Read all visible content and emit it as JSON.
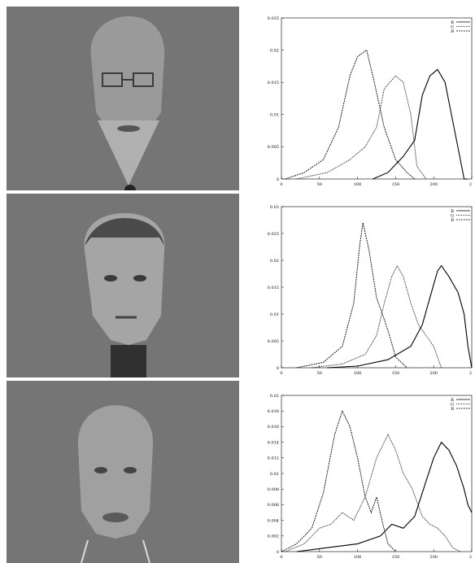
{
  "colors": {
    "photo_background": "#757575",
    "axis": "#000000",
    "curve": "#000000"
  },
  "panels": [
    {
      "photo_name": "face-photo-1"
    },
    {
      "photo_name": "face-photo-2"
    },
    {
      "photo_name": "face-photo-3"
    }
  ],
  "chart_data": [
    {
      "type": "line",
      "xlim": [
        0,
        250
      ],
      "ylim": [
        0,
        0.025
      ],
      "xticks": [
        "0",
        "50",
        "100",
        "150",
        "200",
        "2"
      ],
      "yticks": [
        "0",
        "0.005",
        "0.01",
        "0.015",
        "0.02",
        "0.025"
      ],
      "legend_position": "top-right",
      "series": [
        {
          "name": "R",
          "style": "solid",
          "points": [
            [
              120,
              0
            ],
            [
              140,
              0.001
            ],
            [
              160,
              0.0035
            ],
            [
              175,
              0.006
            ],
            [
              185,
              0.013
            ],
            [
              195,
              0.016
            ],
            [
              205,
              0.017
            ],
            [
              215,
              0.015
            ],
            [
              225,
              0.009
            ],
            [
              235,
              0.003
            ],
            [
              240,
              0
            ],
            [
              245,
              0
            ]
          ]
        },
        {
          "name": "G",
          "style": "dotted",
          "points": [
            [
              20,
              0
            ],
            [
              60,
              0.001
            ],
            [
              90,
              0.003
            ],
            [
              110,
              0.005
            ],
            [
              125,
              0.008
            ],
            [
              135,
              0.014
            ],
            [
              150,
              0.016
            ],
            [
              160,
              0.015
            ],
            [
              170,
              0.01
            ],
            [
              178,
              0.002
            ],
            [
              190,
              0
            ]
          ]
        },
        {
          "name": "B",
          "style": "dashed",
          "points": [
            [
              5,
              0
            ],
            [
              30,
              0.001
            ],
            [
              55,
              0.003
            ],
            [
              75,
              0.008
            ],
            [
              90,
              0.016
            ],
            [
              100,
              0.019
            ],
            [
              112,
              0.02
            ],
            [
              122,
              0.015
            ],
            [
              135,
              0.008
            ],
            [
              150,
              0.003
            ],
            [
              165,
              0.001
            ],
            [
              175,
              0
            ]
          ]
        }
      ]
    },
    {
      "type": "line",
      "xlim": [
        0,
        250
      ],
      "ylim": [
        0,
        0.03
      ],
      "xticks": [
        "0",
        "50",
        "100",
        "150",
        "200",
        "2"
      ],
      "yticks": [
        "0",
        "0.005",
        "0.01",
        "0.015",
        "0.02",
        "0.025",
        "0.03"
      ],
      "legend_position": "top-right",
      "series": [
        {
          "name": "R",
          "style": "solid",
          "points": [
            [
              60,
              0
            ],
            [
              100,
              0.0003
            ],
            [
              140,
              0.0015
            ],
            [
              170,
              0.004
            ],
            [
              185,
              0.008
            ],
            [
              195,
              0.013
            ],
            [
              205,
              0.018
            ],
            [
              210,
              0.019
            ],
            [
              220,
              0.017
            ],
            [
              232,
              0.014
            ],
            [
              240,
              0.01
            ],
            [
              245,
              0.004
            ],
            [
              250,
              0
            ]
          ]
        },
        {
          "name": "G",
          "style": "dotted",
          "points": [
            [
              40,
              0
            ],
            [
              80,
              0.0007
            ],
            [
              110,
              0.0025
            ],
            [
              125,
              0.006
            ],
            [
              135,
              0.012
            ],
            [
              145,
              0.017
            ],
            [
              152,
              0.019
            ],
            [
              160,
              0.017
            ],
            [
              170,
              0.012
            ],
            [
              180,
              0.008
            ],
            [
              190,
              0.006
            ],
            [
              200,
              0.004
            ],
            [
              210,
              0
            ]
          ]
        },
        {
          "name": "B",
          "style": "dashed",
          "points": [
            [
              20,
              0
            ],
            [
              55,
              0.001
            ],
            [
              80,
              0.004
            ],
            [
              95,
              0.012
            ],
            [
              103,
              0.023
            ],
            [
              107,
              0.027
            ],
            [
              115,
              0.022
            ],
            [
              125,
              0.013
            ],
            [
              135,
              0.009
            ],
            [
              142,
              0.006
            ],
            [
              150,
              0.002
            ],
            [
              165,
              0
            ]
          ]
        }
      ]
    },
    {
      "type": "line",
      "xlim": [
        0,
        250
      ],
      "ylim": [
        0,
        0.02
      ],
      "xticks": [
        "0",
        "50",
        "100",
        "150",
        "200",
        "2"
      ],
      "yticks": [
        "0",
        "0.002",
        "0.004",
        "0.006",
        "0.008",
        "0.01",
        "0.012",
        "0.014",
        "0.016",
        "0.018",
        "0.02"
      ],
      "legend_position": "top-right",
      "series": [
        {
          "name": "R",
          "style": "solid",
          "points": [
            [
              20,
              0
            ],
            [
              60,
              0.0005
            ],
            [
              100,
              0.001
            ],
            [
              130,
              0.002
            ],
            [
              145,
              0.0035
            ],
            [
              160,
              0.003
            ],
            [
              175,
              0.0045
            ],
            [
              190,
              0.009
            ],
            [
              200,
              0.012
            ],
            [
              210,
              0.014
            ],
            [
              220,
              0.013
            ],
            [
              230,
              0.011
            ],
            [
              240,
              0.008
            ],
            [
              245,
              0.006
            ],
            [
              250,
              0.005
            ]
          ]
        },
        {
          "name": "G",
          "style": "dotted",
          "points": [
            [
              5,
              0
            ],
            [
              30,
              0.001
            ],
            [
              50,
              0.003
            ],
            [
              65,
              0.0035
            ],
            [
              80,
              0.005
            ],
            [
              95,
              0.004
            ],
            [
              110,
              0.007
            ],
            [
              125,
              0.012
            ],
            [
              140,
              0.015
            ],
            [
              150,
              0.013
            ],
            [
              160,
              0.01
            ],
            [
              172,
              0.008
            ],
            [
              185,
              0.0045
            ],
            [
              195,
              0.0035
            ],
            [
              205,
              0.003
            ],
            [
              215,
              0.002
            ],
            [
              225,
              0.0005
            ],
            [
              235,
              0
            ]
          ]
        },
        {
          "name": "B",
          "style": "dashed",
          "points": [
            [
              0,
              0
            ],
            [
              20,
              0.001
            ],
            [
              40,
              0.003
            ],
            [
              55,
              0.0075
            ],
            [
              70,
              0.015
            ],
            [
              80,
              0.018
            ],
            [
              90,
              0.016
            ],
            [
              100,
              0.012
            ],
            [
              110,
              0.007
            ],
            [
              118,
              0.005
            ],
            [
              125,
              0.007
            ],
            [
              132,
              0.004
            ],
            [
              140,
              0.001
            ],
            [
              150,
              0
            ]
          ]
        }
      ]
    }
  ]
}
